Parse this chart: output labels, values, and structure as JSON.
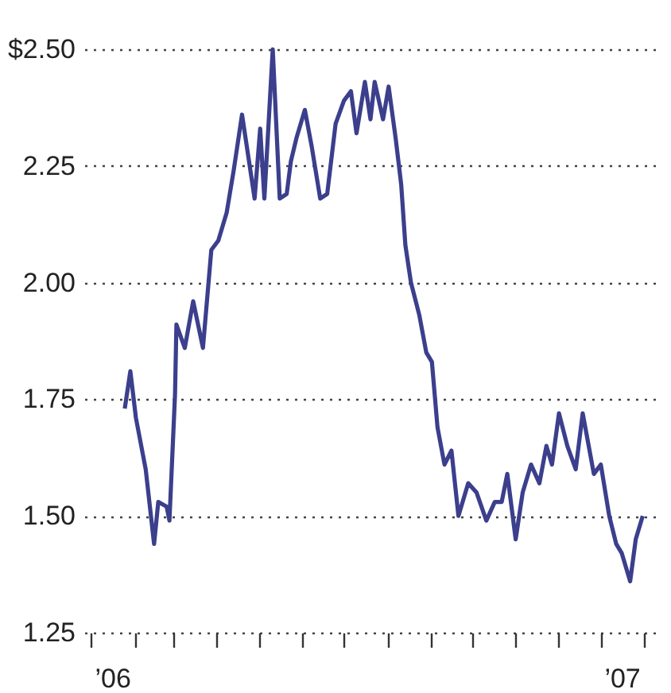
{
  "chart_data": {
    "type": "line",
    "x": [
      "2006-01-25",
      "2006-01-29",
      "2006-02-02",
      "2006-02-09",
      "2006-02-15",
      "2006-02-18",
      "2006-02-24",
      "2006-02-26",
      "2006-03-02",
      "2006-03-03",
      "2006-03-09",
      "2006-03-15",
      "2006-03-22",
      "2006-03-28",
      "2006-04-02",
      "2006-04-08",
      "2006-04-13",
      "2006-04-19",
      "2006-04-24",
      "2006-04-28",
      "2006-05-02",
      "2006-05-05",
      "2006-05-11",
      "2006-05-16",
      "2006-05-21",
      "2006-05-24",
      "2006-05-28",
      "2006-06-03",
      "2006-06-08",
      "2006-06-14",
      "2006-06-19",
      "2006-06-25",
      "2006-07-01",
      "2006-07-06",
      "2006-07-10",
      "2006-07-16",
      "2006-07-20",
      "2006-07-23",
      "2006-07-29",
      "2006-08-02",
      "2006-08-07",
      "2006-08-11",
      "2006-08-14",
      "2006-08-18",
      "2006-08-24",
      "2006-08-29",
      "2006-09-02",
      "2006-09-06",
      "2006-09-11",
      "2006-09-16",
      "2006-09-21",
      "2006-09-28",
      "2006-10-04",
      "2006-10-11",
      "2006-10-17",
      "2006-10-22",
      "2006-10-26",
      "2006-11-01",
      "2006-11-06",
      "2006-11-12",
      "2006-11-18",
      "2006-11-23",
      "2006-11-27",
      "2006-12-02",
      "2006-12-08",
      "2006-12-14",
      "2006-12-19",
      "2006-12-27",
      "2007-01-01",
      "2007-01-07",
      "2007-01-12",
      "2007-01-16",
      "2007-01-22",
      "2007-01-26",
      "2007-01-31"
    ],
    "series": [
      {
        "color": "#3b3f8c",
        "values": [
          1.73,
          1.81,
          1.71,
          1.6,
          1.44,
          1.53,
          1.52,
          1.49,
          1.76,
          1.91,
          1.86,
          1.96,
          1.86,
          2.07,
          2.09,
          2.15,
          2.24,
          2.36,
          2.26,
          2.18,
          2.33,
          2.18,
          2.5,
          2.18,
          2.19,
          2.26,
          2.31,
          2.37,
          2.29,
          2.18,
          2.19,
          2.34,
          2.39,
          2.41,
          2.32,
          2.43,
          2.35,
          2.43,
          2.35,
          2.42,
          2.31,
          2.21,
          2.08,
          2.0,
          1.93,
          1.85,
          1.83,
          1.69,
          1.61,
          1.64,
          1.5,
          1.57,
          1.55,
          1.49,
          1.53,
          1.53,
          1.59,
          1.45,
          1.55,
          1.61,
          1.57,
          1.65,
          1.61,
          1.72,
          1.65,
          1.6,
          1.72,
          1.59,
          1.61,
          1.5,
          1.44,
          1.42,
          1.36,
          1.45,
          1.5
        ]
      }
    ],
    "xlim": [
      "2005-12-27",
      "2007-02-10"
    ],
    "xticks": [
      {
        "value": "2006-01-01",
        "label": null
      },
      {
        "value": "2006-01-16",
        "label": "’06"
      },
      {
        "value": "2006-02-01",
        "label": null
      },
      {
        "value": "2006-03-01",
        "label": null
      },
      {
        "value": "2006-04-01",
        "label": null
      },
      {
        "value": "2006-05-01",
        "label": null
      },
      {
        "value": "2006-06-01",
        "label": null
      },
      {
        "value": "2006-07-01",
        "label": null
      },
      {
        "value": "2006-08-01",
        "label": null
      },
      {
        "value": "2006-09-01",
        "label": null
      },
      {
        "value": "2006-10-01",
        "label": null
      },
      {
        "value": "2006-11-01",
        "label": null
      },
      {
        "value": "2006-12-01",
        "label": null
      },
      {
        "value": "2007-01-01",
        "label": null
      },
      {
        "value": "2007-01-16",
        "label": "’07"
      },
      {
        "value": "2007-02-01",
        "label": null
      }
    ],
    "ylim": [
      1.25,
      2.5
    ],
    "yticks": [
      {
        "value": 1.25,
        "label": "1.25"
      },
      {
        "value": 1.5,
        "label": "1.50"
      },
      {
        "value": 1.75,
        "label": "1.75"
      },
      {
        "value": 2.0,
        "label": "2.00"
      },
      {
        "value": 2.25,
        "label": "2.25"
      },
      {
        "value": 2.5,
        "label": "$2.50"
      }
    ],
    "grid": "y",
    "marker": "none",
    "line_style": "solid"
  }
}
